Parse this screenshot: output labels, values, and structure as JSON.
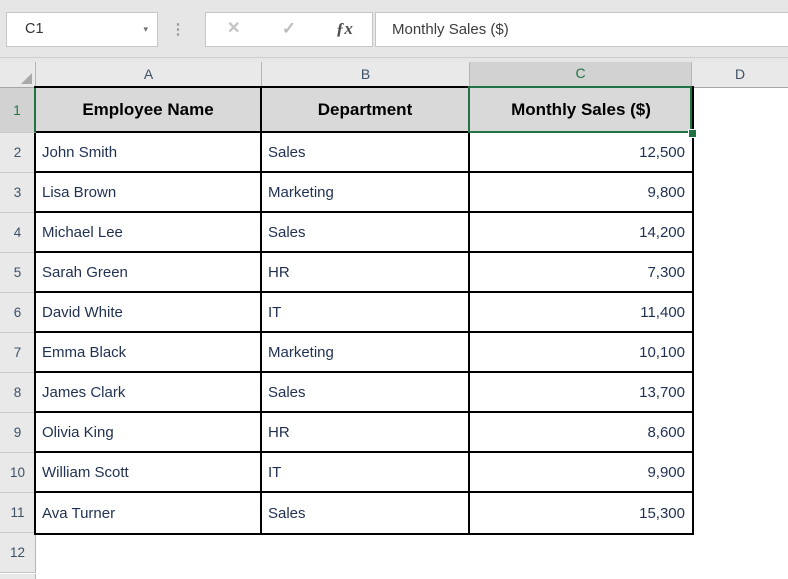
{
  "formula_bar": {
    "name_box_value": "C1",
    "formula_text": "Monthly Sales ($)",
    "icons": {
      "name_box_dropdown": "▾",
      "resize_dots": "⋮",
      "cancel": "✕",
      "enter": "✓",
      "insert_function": "ƒx"
    }
  },
  "sheet": {
    "column_letters": [
      "A",
      "B",
      "C",
      "D"
    ],
    "row_numbers": [
      "1",
      "2",
      "3",
      "4",
      "5",
      "6",
      "7",
      "8",
      "9",
      "10",
      "11",
      "12"
    ],
    "selected_column": "C",
    "selected_row": "1",
    "selected_cell_ref": "C1",
    "header_cells": [
      "Employee Name",
      "Department",
      "Monthly Sales ($)"
    ],
    "data_rows": [
      {
        "employee": "John Smith",
        "department": "Sales",
        "monthly_sales": "12,500"
      },
      {
        "employee": "Lisa Brown",
        "department": "Marketing",
        "monthly_sales": "9,800"
      },
      {
        "employee": "Michael Lee",
        "department": "Sales",
        "monthly_sales": "14,200"
      },
      {
        "employee": "Sarah Green",
        "department": "HR",
        "monthly_sales": "7,300"
      },
      {
        "employee": "David White",
        "department": "IT",
        "monthly_sales": "11,400"
      },
      {
        "employee": "Emma Black",
        "department": "Marketing",
        "monthly_sales": "10,100"
      },
      {
        "employee": "James Clark",
        "department": "Sales",
        "monthly_sales": "13,700"
      },
      {
        "employee": "Olivia King",
        "department": "HR",
        "monthly_sales": "8,600"
      },
      {
        "employee": "William Scott",
        "department": "IT",
        "monthly_sales": "9,900"
      },
      {
        "employee": "Ava Turner",
        "department": "Sales",
        "monthly_sales": "15,300"
      }
    ]
  },
  "colors": {
    "selection_green": "#217346",
    "table_header_fill": "#D9D9D9",
    "selected_header_fill": "#D2D2D2",
    "header_strip_fill": "#E9E9E9",
    "toolbar_fill": "#E6E6E6",
    "grid_border": "#000000"
  }
}
